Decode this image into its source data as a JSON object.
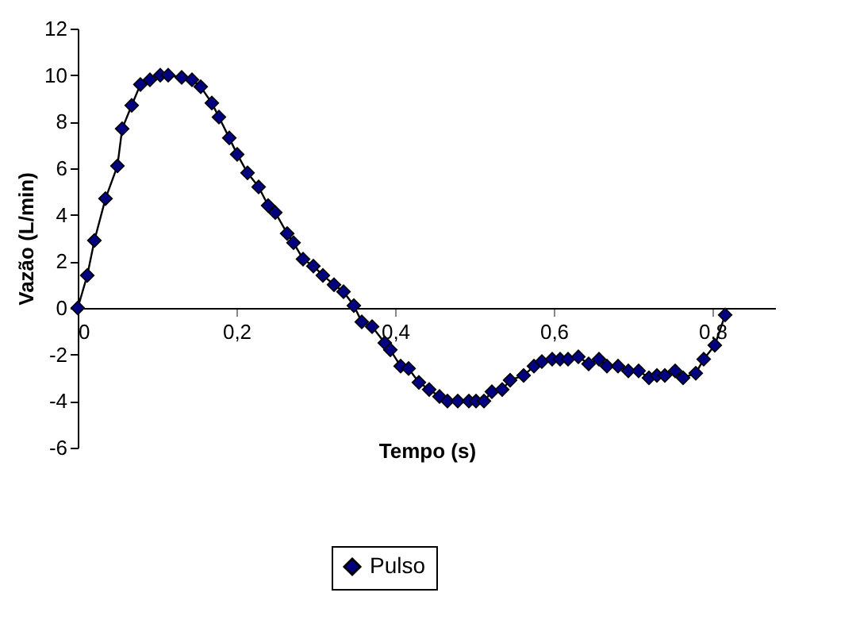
{
  "chart_data": {
    "type": "line",
    "xlabel": "Tempo (s)",
    "ylabel": "Vazão (L/min)",
    "xlim": [
      0,
      0.88
    ],
    "xticks": [
      {
        "value": 0,
        "label": "0"
      },
      {
        "value": 0.2,
        "label": "0,2"
      },
      {
        "value": 0.4,
        "label": "0,4"
      },
      {
        "value": 0.6,
        "label": "0,6"
      },
      {
        "value": 0.8,
        "label": "0,8"
      }
    ],
    "ylim": [
      -6,
      12
    ],
    "yticks": [
      -6,
      -4,
      -2,
      0,
      2,
      4,
      6,
      8,
      10,
      12
    ],
    "grid": false,
    "legend": "bottom",
    "marker": "diamond",
    "line_style": "solid",
    "series": [
      {
        "name": "Pulso",
        "color": "#000080",
        "x": [
          0,
          0.012,
          0.021,
          0.035,
          0.05,
          0.056,
          0.068,
          0.079,
          0.091,
          0.104,
          0.114,
          0.131,
          0.144,
          0.155,
          0.169,
          0.178,
          0.191,
          0.201,
          0.214,
          0.228,
          0.24,
          0.249,
          0.264,
          0.272,
          0.284,
          0.297,
          0.309,
          0.323,
          0.335,
          0.348,
          0.358,
          0.371,
          0.387,
          0.394,
          0.407,
          0.417,
          0.43,
          0.443,
          0.456,
          0.466,
          0.479,
          0.493,
          0.502,
          0.512,
          0.522,
          0.535,
          0.545,
          0.562,
          0.575,
          0.585,
          0.598,
          0.608,
          0.618,
          0.631,
          0.644,
          0.657,
          0.667,
          0.681,
          0.694,
          0.707,
          0.72,
          0.73,
          0.74,
          0.753,
          0.763,
          0.779,
          0.789,
          0.803,
          0.816
        ],
        "values": [
          0,
          1.4,
          2.9,
          4.7,
          6.1,
          7.7,
          8.7,
          9.6,
          9.8,
          10,
          10,
          9.9,
          9.8,
          9.5,
          8.8,
          8.2,
          7.3,
          6.6,
          5.8,
          5.2,
          4.4,
          4.1,
          3.2,
          2.8,
          2.1,
          1.8,
          1.4,
          1,
          0.7,
          0.1,
          -0.6,
          -0.8,
          -1.5,
          -1.8,
          -2.5,
          -2.6,
          -3.2,
          -3.5,
          -3.8,
          -4,
          -4,
          -4,
          -4,
          -4,
          -3.6,
          -3.5,
          -3.1,
          -2.9,
          -2.5,
          -2.3,
          -2.2,
          -2.2,
          -2.2,
          -2.1,
          -2.4,
          -2.2,
          -2.5,
          -2.5,
          -2.7,
          -2.7,
          -3,
          -2.9,
          -2.9,
          -2.7,
          -3,
          -2.8,
          -2.2,
          -1.6,
          -0.3
        ]
      }
    ]
  }
}
